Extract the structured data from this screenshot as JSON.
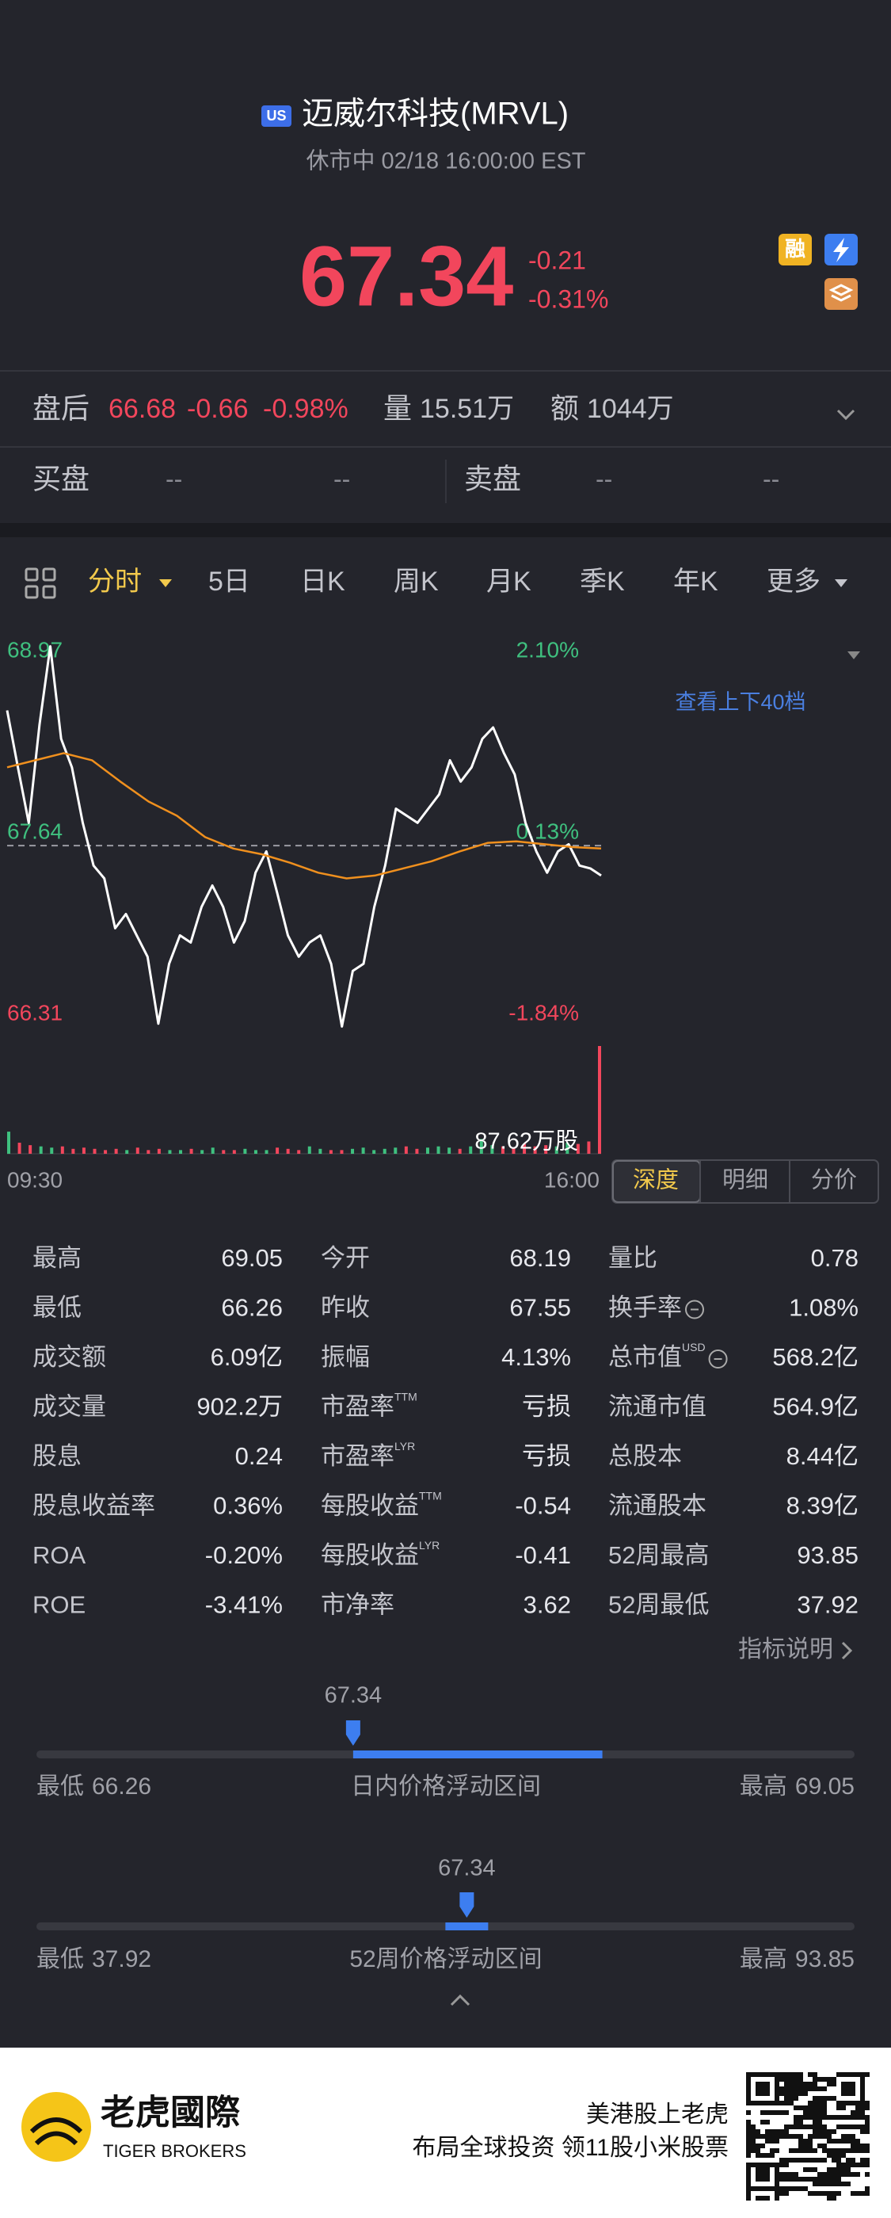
{
  "header": {
    "badge": "US",
    "title": "迈威尔科技(MRVL)",
    "status": "休市中 02/18 16:00:00 EST"
  },
  "quote": {
    "price": "67.34",
    "change": "-0.21",
    "change_pct": "-0.31%",
    "margin_icon": "融"
  },
  "after_hours": {
    "label": "盘后",
    "price": "66.68",
    "change": "-0.66",
    "change_pct": "-0.98%",
    "volume_label": "量",
    "volume": "15.51万",
    "amount_label": "额",
    "amount": "1044万"
  },
  "order_book": {
    "bid_label": "买盘",
    "bid_price": "--",
    "bid_size": "--",
    "ask_label": "卖盘",
    "ask_price": "--",
    "ask_size": "--"
  },
  "tabs": [
    "分时",
    "5日",
    "日K",
    "周K",
    "月K",
    "季K",
    "年K",
    "更多"
  ],
  "chart_data": {
    "type": "line",
    "ylim": [
      66.31,
      68.97
    ],
    "yticks": [
      66.31,
      67.64,
      68.97
    ],
    "y2lim": [
      -1.84,
      2.1
    ],
    "y2ticks": [
      {
        "value": -1.84,
        "label": "-1.84%"
      },
      {
        "value": 0.13,
        "label": "0.13%"
      },
      {
        "value": 2.1,
        "label": "2.10%"
      }
    ],
    "up_color": "#3fc07f",
    "down_color": "#f2465c",
    "series": [
      {
        "color": "#ffffff",
        "values": [
          68.5,
          68.1,
          67.71,
          68.4,
          68.95,
          68.3,
          68.1,
          67.71,
          67.41,
          67.32,
          66.97,
          67.07,
          66.92,
          66.77,
          66.3,
          66.72,
          66.92,
          66.87,
          67.12,
          67.27,
          67.12,
          66.87,
          67.02,
          67.36,
          67.51,
          67.22,
          66.92,
          66.77,
          66.87,
          66.92,
          66.72,
          66.28,
          66.67,
          66.72,
          67.12,
          67.41,
          67.81,
          67.76,
          67.71,
          67.81,
          67.91,
          68.15,
          68.0,
          68.1,
          68.3,
          68.38,
          68.2,
          68.05,
          67.71,
          67.51,
          67.36,
          67.51,
          67.56,
          67.41,
          67.39,
          67.34
        ]
      },
      {
        "color": "#f0901e",
        "values": [
          68.1,
          68.15,
          68.2,
          68.15,
          68.0,
          67.86,
          67.76,
          67.61,
          67.53,
          67.49,
          67.43,
          67.36,
          67.32,
          67.34,
          67.39,
          67.44,
          67.51,
          67.57,
          67.58,
          67.56,
          67.54,
          67.53
        ]
      }
    ],
    "volume": {
      "values": [
        18,
        9,
        7,
        6,
        5,
        6,
        4,
        5,
        4,
        3,
        4,
        3,
        5,
        3,
        4,
        3,
        3,
        4,
        3,
        5,
        3,
        3,
        4,
        3,
        3,
        5,
        4,
        3,
        6,
        4,
        3,
        3,
        4,
        5,
        3,
        4,
        5,
        6,
        4,
        5,
        6,
        5,
        4,
        6,
        12,
        7,
        6,
        5,
        8,
        6,
        7,
        6,
        9,
        8,
        10,
        87.62
      ],
      "ylim": [
        0,
        87.62
      ],
      "yticks": [
        {
          "value": 87.62,
          "label": "87.62万股"
        }
      ]
    },
    "time_labels": [
      "09:30",
      "16:00"
    ]
  },
  "depth_link": "查看上下40档",
  "chart_tabs": [
    "深度",
    "明细",
    "分价"
  ],
  "stats": {
    "rows": [
      [
        {
          "label": "最高",
          "value": "69.05"
        },
        {
          "label": "今开",
          "value": "68.19"
        },
        {
          "label": "量比",
          "value": "0.78"
        }
      ],
      [
        {
          "label": "最低",
          "value": "66.26"
        },
        {
          "label": "昨收",
          "value": "67.55"
        },
        {
          "label": "换手率",
          "info": true,
          "value": "1.08%"
        }
      ],
      [
        {
          "label": "成交额",
          "value": "6.09亿"
        },
        {
          "label": "振幅",
          "value": "4.13%"
        },
        {
          "label": "总市值",
          "sup": "USD",
          "info": true,
          "value": "568.2亿"
        }
      ],
      [
        {
          "label": "成交量",
          "value": "902.2万"
        },
        {
          "label": "市盈率",
          "sup": "TTM",
          "value": "亏损"
        },
        {
          "label": "流通市值",
          "value": "564.9亿"
        }
      ],
      [
        {
          "label": "股息",
          "value": "0.24"
        },
        {
          "label": "市盈率",
          "sup": "LYR",
          "value": "亏损"
        },
        {
          "label": "总股本",
          "value": "8.44亿"
        }
      ],
      [
        {
          "label": "股息收益率",
          "value": "0.36%"
        },
        {
          "label": "每股收益",
          "sup": "TTM",
          "value": "-0.54"
        },
        {
          "label": "流通股本",
          "value": "8.39亿"
        }
      ],
      [
        {
          "label": "ROA",
          "value": "-0.20%"
        },
        {
          "label": "每股收益",
          "sup": "LYR",
          "value": "-0.41"
        },
        {
          "label": "52周最高",
          "value": "93.85"
        }
      ],
      [
        {
          "label": "ROE",
          "value": "-3.41%"
        },
        {
          "label": "市净率",
          "value": "3.62"
        },
        {
          "label": "52周最低",
          "value": "37.92"
        }
      ]
    ]
  },
  "indicator_help": "指标说明",
  "ranges": [
    {
      "current": 67.34,
      "low_label": "最低",
      "low": 66.26,
      "title": "日内价格浮动区间",
      "high_label": "最高",
      "high": 69.05
    },
    {
      "current": 67.34,
      "low_label": "最低",
      "low": 37.92,
      "title": "52周价格浮动区间",
      "high_label": "最高",
      "high": 93.85
    }
  ],
  "footer": {
    "brand": "老虎國際",
    "brand_en": "TIGER BROKERS",
    "slogan": "美港股上老虎",
    "promo": "布局全球投资 领11股小米股票"
  }
}
